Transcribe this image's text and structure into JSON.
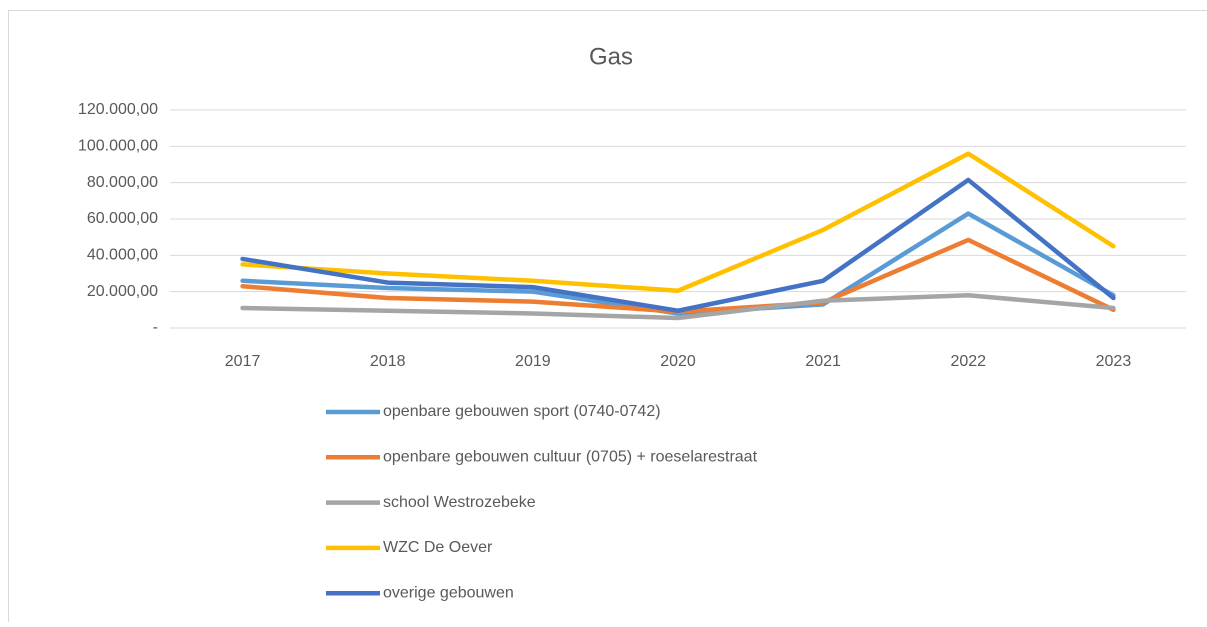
{
  "chart_data": {
    "type": "line",
    "title": "Gas",
    "categories": [
      "2017",
      "2018",
      "2019",
      "2020",
      "2021",
      "2022",
      "2023"
    ],
    "series": [
      {
        "name": "openbare gebouwen sport (0740-0742)",
        "color": "#5b9bd5",
        "values": [
          26000,
          22000,
          20000,
          8000,
          13000,
          63000,
          18000
        ]
      },
      {
        "name": "openbare gebouwen cultuur (0705) + roeselarestraat",
        "color": "#ed7d31",
        "values": [
          23000,
          16500,
          14500,
          9000,
          14000,
          48500,
          10000
        ]
      },
      {
        "name": "school Westrozebeke",
        "color": "#a5a5a5",
        "values": [
          11000,
          9500,
          8000,
          5500,
          15000,
          18000,
          11000
        ]
      },
      {
        "name": "WZC De Oever",
        "color": "#ffc000",
        "values": [
          35000,
          30000,
          26000,
          20500,
          54000,
          96000,
          45000
        ]
      },
      {
        "name": "overige gebouwen",
        "color": "#4472c4",
        "values": [
          38000,
          25000,
          22500,
          9500,
          26000,
          81500,
          16500
        ]
      }
    ],
    "ylim": [
      0,
      120000
    ],
    "yticks": [
      {
        "value": 0,
        "label": "-"
      },
      {
        "value": 20000,
        "label": "20.000,00"
      },
      {
        "value": 40000,
        "label": "40.000,00"
      },
      {
        "value": 60000,
        "label": "60.000,00"
      },
      {
        "value": 80000,
        "label": "80.000,00"
      },
      {
        "value": 100000,
        "label": "100.000,00"
      },
      {
        "value": 120000,
        "label": "120.000,00"
      }
    ],
    "grid": true
  }
}
